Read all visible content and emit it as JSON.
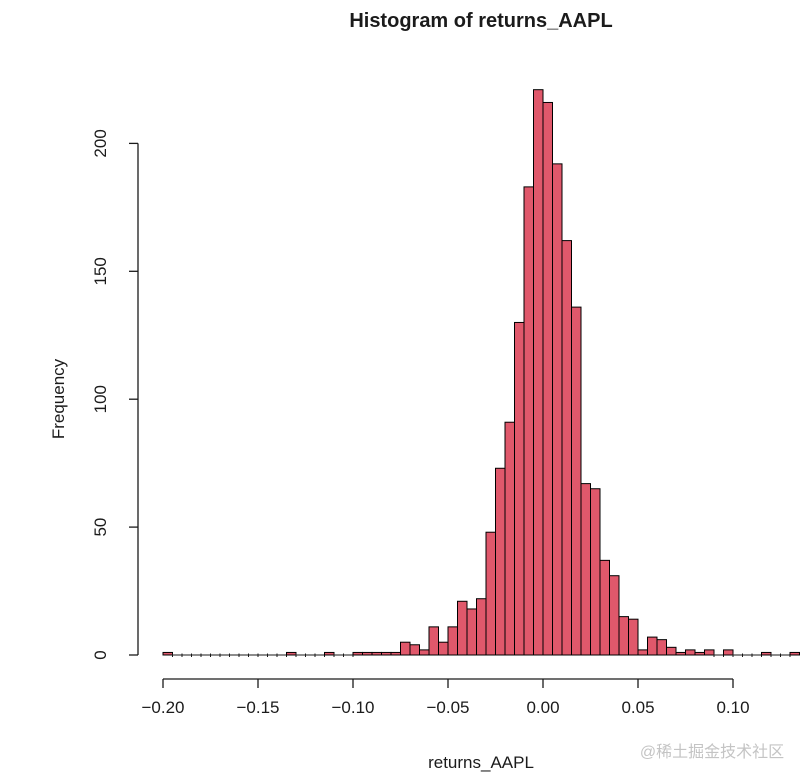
{
  "page": {
    "background": "#ffffff"
  },
  "chart_data": {
    "type": "bar",
    "subtype": "histogram",
    "title": "Histogram of returns_AAPL",
    "xlabel": "returns_AAPL",
    "ylabel": "Frequency",
    "bin_start": -0.2,
    "bin_width": 0.005,
    "frequencies": [
      1,
      0,
      0,
      0,
      0,
      0,
      0,
      0,
      0,
      0,
      0,
      0,
      0,
      1,
      0,
      0,
      0,
      1,
      0,
      0,
      1,
      1,
      1,
      1,
      1,
      5,
      4,
      2,
      11,
      5,
      11,
      21,
      18,
      22,
      48,
      73,
      91,
      130,
      183,
      221,
      216,
      192,
      162,
      136,
      67,
      65,
      37,
      31,
      15,
      14,
      2,
      7,
      6,
      3,
      1,
      2,
      1,
      2,
      0,
      2,
      0,
      0,
      0,
      1,
      0,
      0,
      1
    ],
    "x_ticks": [
      {
        "value": -0.2,
        "label": "−0.20"
      },
      {
        "value": -0.15,
        "label": "−0.15"
      },
      {
        "value": -0.1,
        "label": "−0.10"
      },
      {
        "value": -0.05,
        "label": "−0.05"
      },
      {
        "value": 0.0,
        "label": "0.00"
      },
      {
        "value": 0.05,
        "label": "0.05"
      },
      {
        "value": 0.1,
        "label": "0.10"
      }
    ],
    "y_ticks": [
      {
        "value": 0,
        "label": "0"
      },
      {
        "value": 50,
        "label": "50"
      },
      {
        "value": 100,
        "label": "100"
      },
      {
        "value": 150,
        "label": "150"
      },
      {
        "value": 200,
        "label": "200"
      }
    ],
    "xlim": [
      -0.2,
      0.135
    ],
    "ylim": [
      0,
      221
    ],
    "grid": "off",
    "legend": "none",
    "bar_fill": "#e0586b",
    "bar_stroke": "#000000",
    "axis_color": "#1b1b1b",
    "text_color": "#1b1b1b"
  },
  "watermark": {
    "text": "@稀土掘金技术社区",
    "color": "#c4c4c4"
  }
}
